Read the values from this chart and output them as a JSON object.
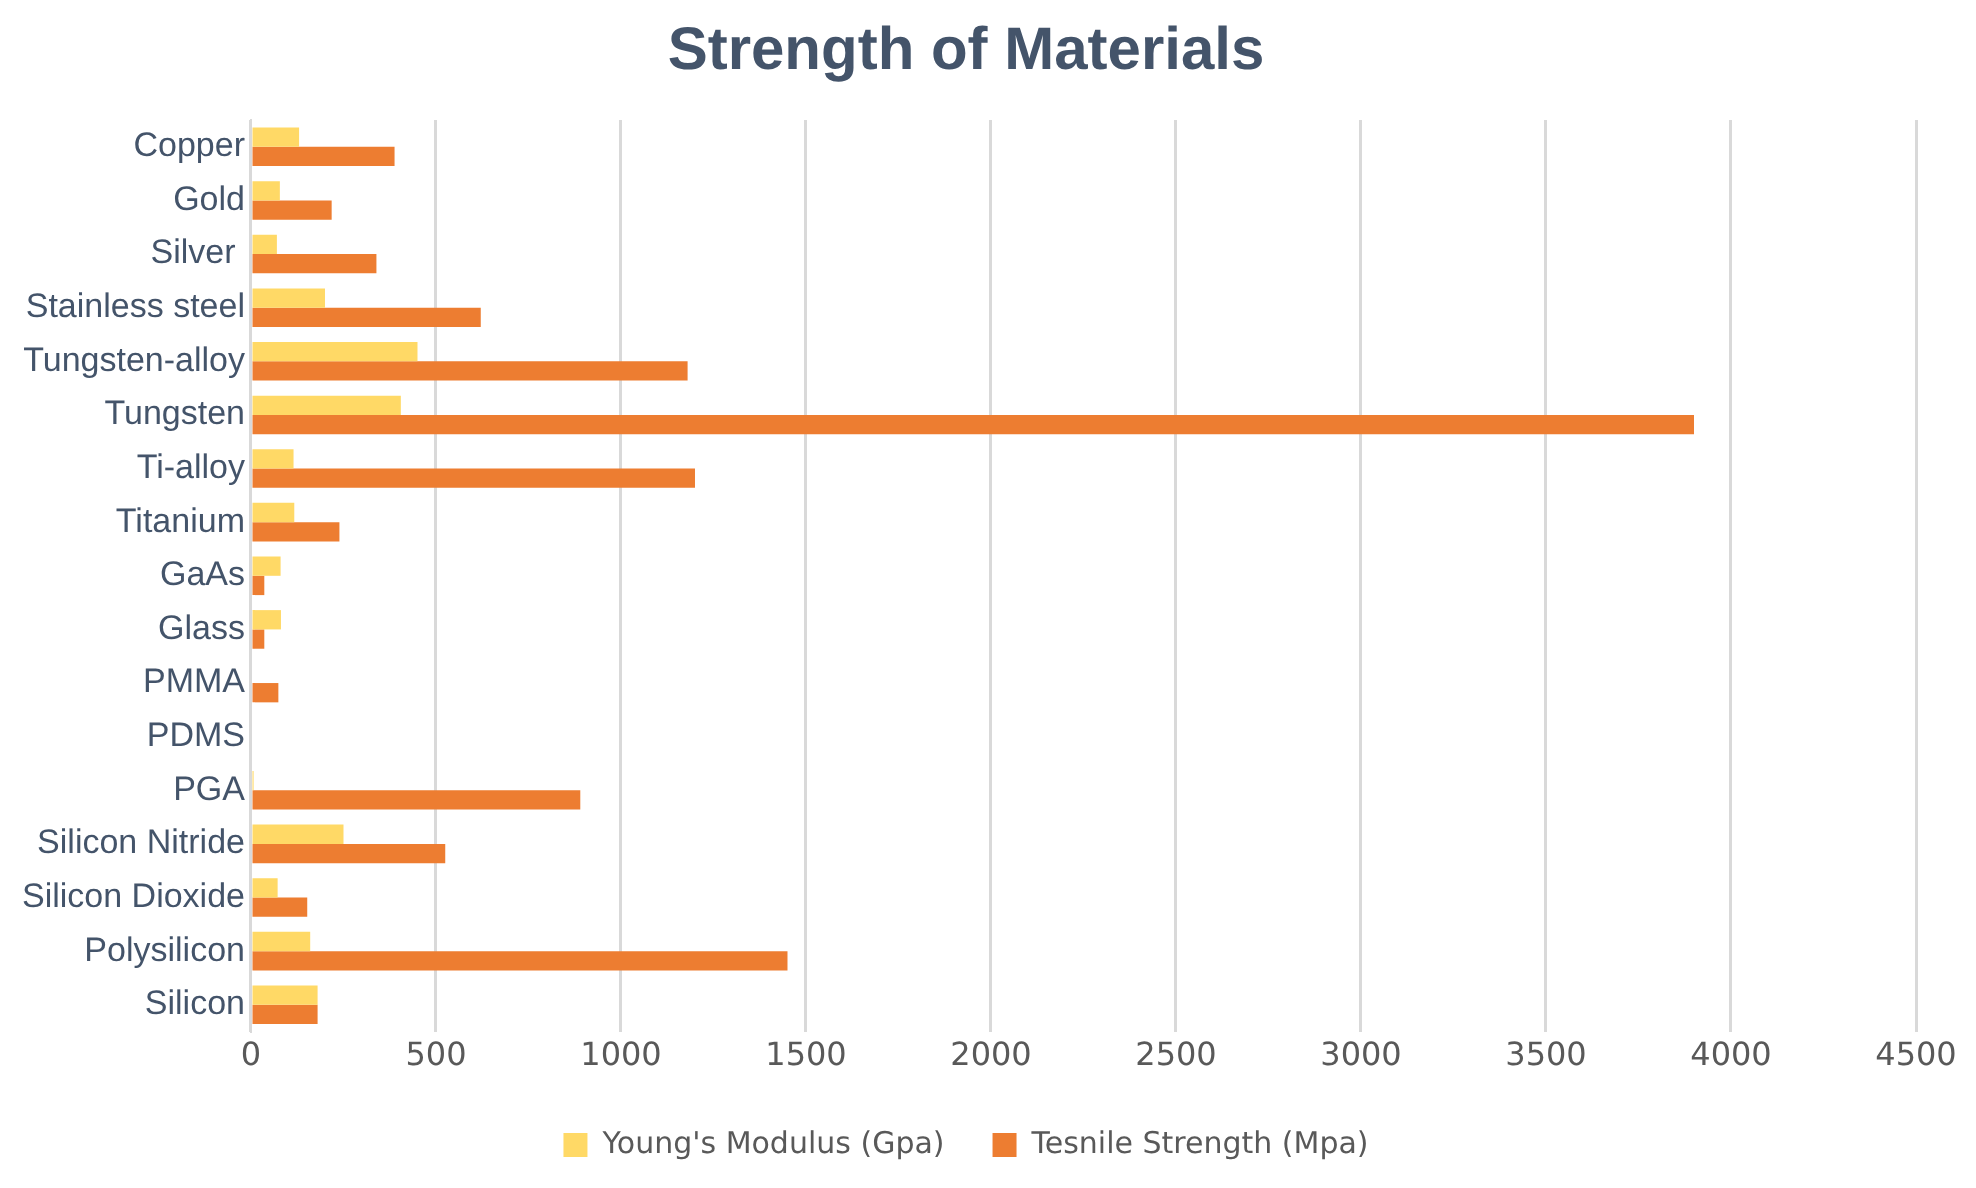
{
  "chart_data": {
    "type": "bar",
    "orientation": "horizontal",
    "title": "Strength of Materials",
    "categories": [
      "Copper",
      "Gold",
      "Silver ",
      "Stainless steel",
      "Tungsten-alloy",
      "Tungsten",
      "Ti-alloy",
      "Titanium",
      "GaAs",
      "Glass",
      "PMMA",
      "PDMS",
      "PGA",
      "Silicon Nitride",
      "Silicon Dioxide",
      "Polysilicon",
      "Silicon"
    ],
    "series": [
      {
        "name": "Young's Modulus (Gpa)",
        "color": "#ffd966",
        "values": [
          130,
          78,
          70,
          200,
          450,
          405,
          115,
          117,
          80,
          81,
          null,
          0,
          7,
          250,
          72,
          160,
          180
        ]
      },
      {
        "name": "Tesnile Strength (Mpa)",
        "color": "#ed7d31",
        "values": [
          388,
          218,
          339,
          621,
          1180,
          3900,
          1200,
          239,
          36,
          36,
          74,
          0,
          890,
          525,
          152,
          1450,
          180
        ]
      }
    ],
    "xlim": [
      0,
      4500
    ],
    "xticks": [
      0,
      500,
      1000,
      1500,
      2000,
      2500,
      3000,
      3500,
      4000,
      4500
    ],
    "grid": "x",
    "legend": "bottom"
  }
}
